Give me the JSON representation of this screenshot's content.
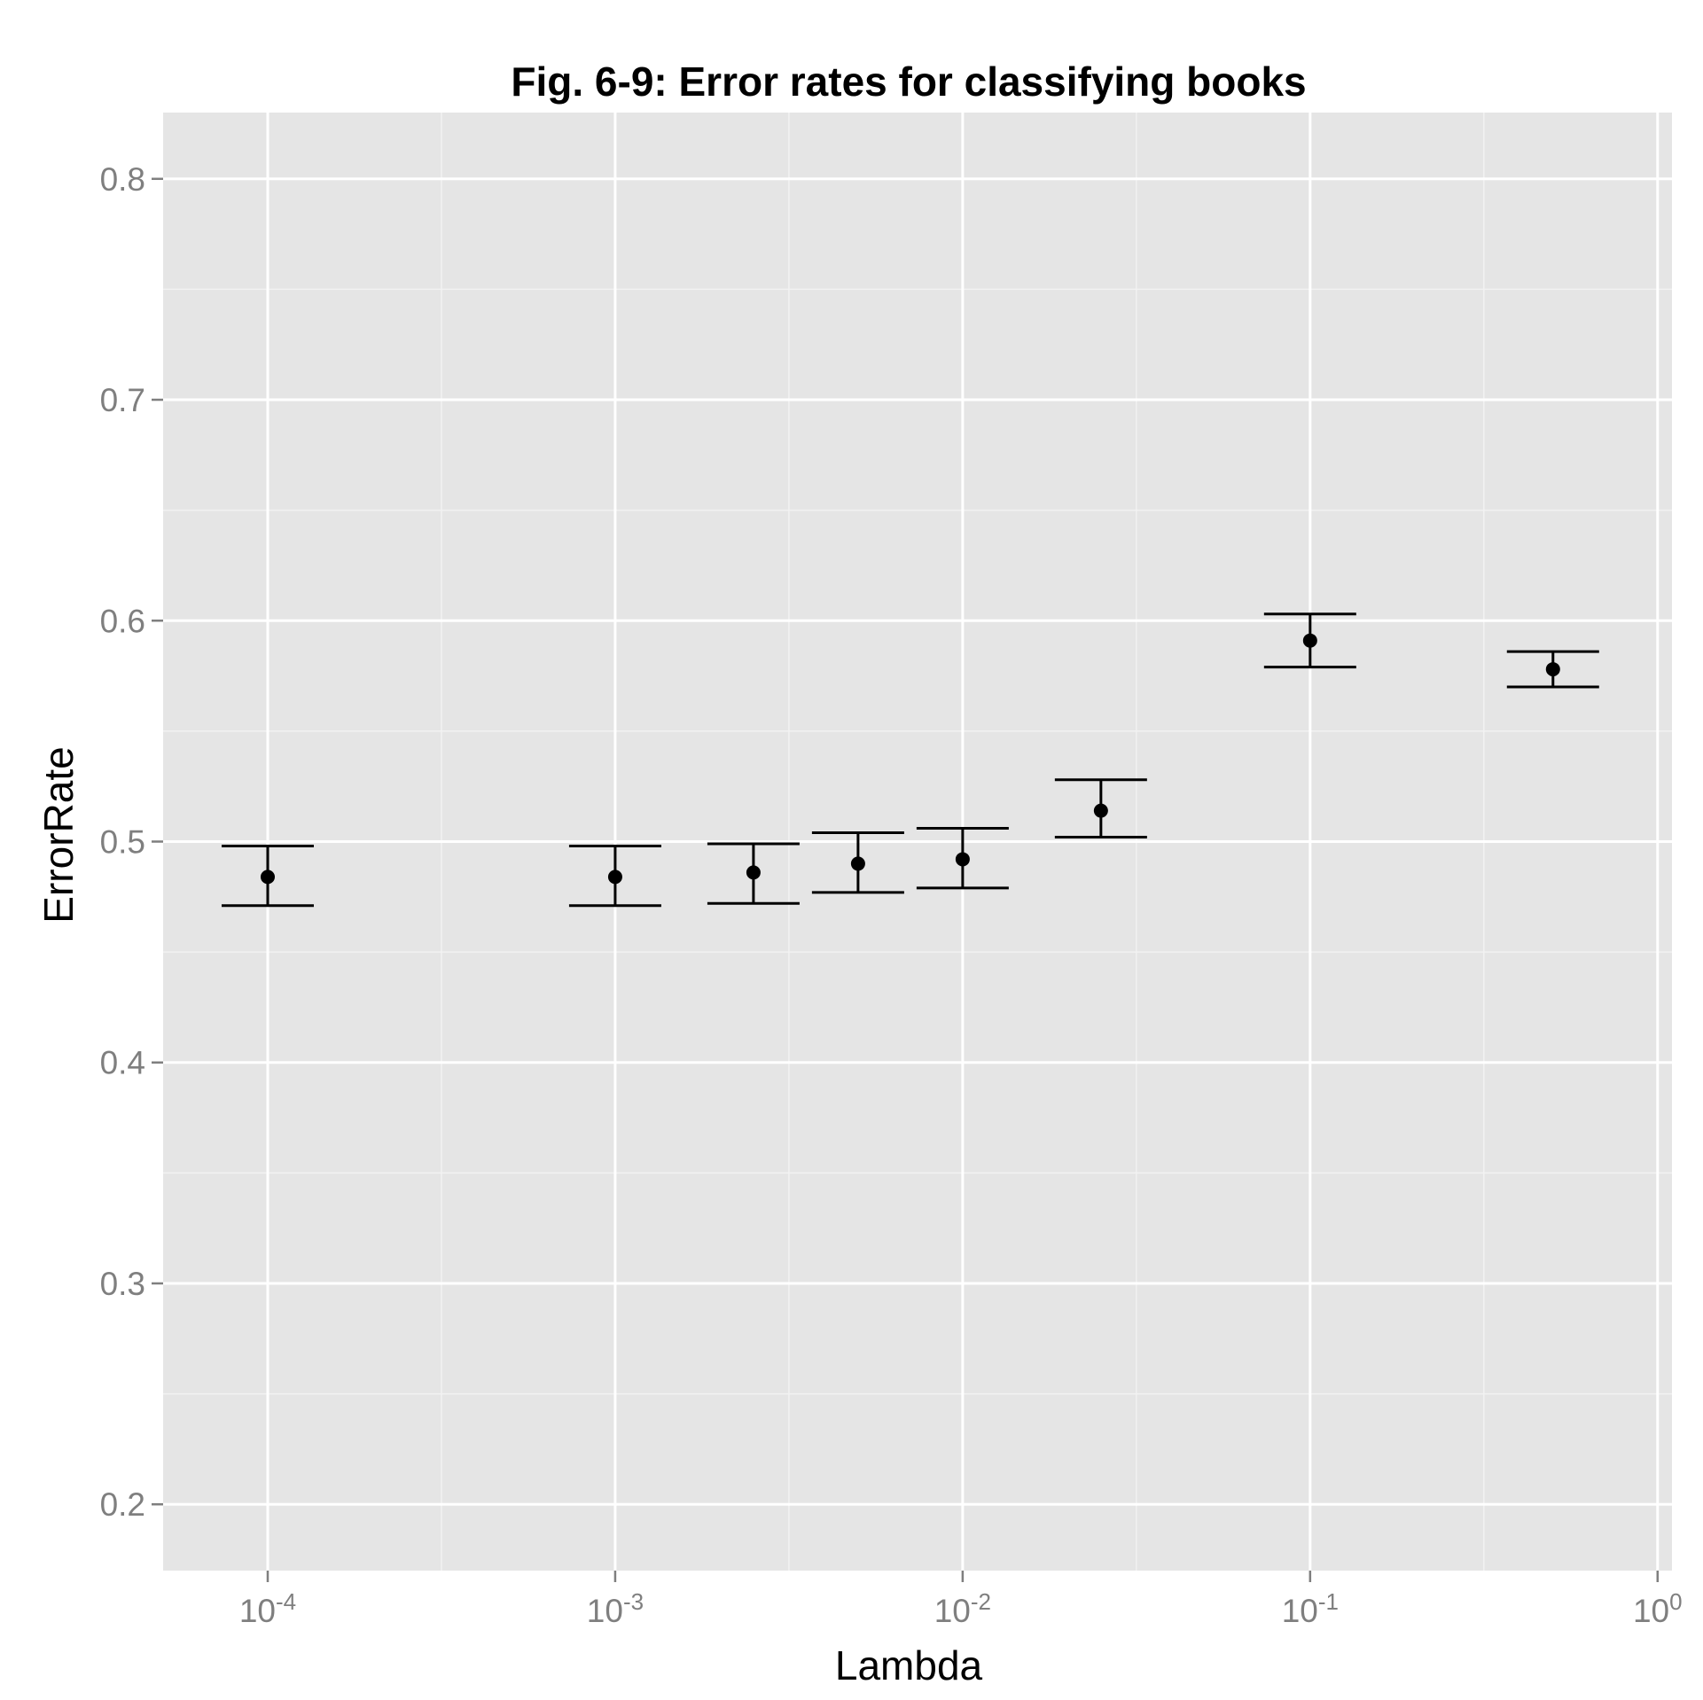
{
  "chart_data": {
    "type": "scatter",
    "title": "Fig. 6-9: Error rates for classifying books",
    "xlabel": "Lambda",
    "ylabel": "ErrorRate",
    "x_scale": "log10",
    "xlim": [
      5e-05,
      1.1
    ],
    "ylim": [
      0.17,
      0.83
    ],
    "x_ticks": [
      {
        "base": "10",
        "exp": "-4",
        "value": 0.0001
      },
      {
        "base": "10",
        "exp": "-3",
        "value": 0.001
      },
      {
        "base": "10",
        "exp": "-2",
        "value": 0.01
      },
      {
        "base": "10",
        "exp": "-1",
        "value": 0.1
      },
      {
        "base": "10",
        "exp": "0",
        "value": 1
      }
    ],
    "y_ticks": [
      {
        "label": "0.2",
        "value": 0.2
      },
      {
        "label": "0.3",
        "value": 0.3
      },
      {
        "label": "0.4",
        "value": 0.4
      },
      {
        "label": "0.5",
        "value": 0.5
      },
      {
        "label": "0.6",
        "value": 0.6
      },
      {
        "label": "0.7",
        "value": 0.7
      },
      {
        "label": "0.8",
        "value": 0.8
      }
    ],
    "grid": true,
    "points": [
      {
        "x": 0.0001,
        "y": 0.484,
        "ymin": 0.471,
        "ymax": 0.498
      },
      {
        "x": 0.001,
        "y": 0.484,
        "ymin": 0.471,
        "ymax": 0.498
      },
      {
        "x": 0.0025,
        "y": 0.486,
        "ymin": 0.472,
        "ymax": 0.499
      },
      {
        "x": 0.005,
        "y": 0.49,
        "ymin": 0.477,
        "ymax": 0.504
      },
      {
        "x": 0.01,
        "y": 0.492,
        "ymin": 0.479,
        "ymax": 0.506
      },
      {
        "x": 0.025,
        "y": 0.514,
        "ymin": 0.502,
        "ymax": 0.528
      },
      {
        "x": 0.1,
        "y": 0.591,
        "ymin": 0.579,
        "ymax": 0.603
      },
      {
        "x": 0.5,
        "y": 0.578,
        "ymin": 0.57,
        "ymax": 0.586
      }
    ],
    "colors": {
      "panel_background": "#e5e5e5",
      "grid_major": "#ffffff",
      "grid_minor": "#f2f2f2",
      "points": "#000000",
      "tick_text": "#7f7f7f"
    }
  }
}
